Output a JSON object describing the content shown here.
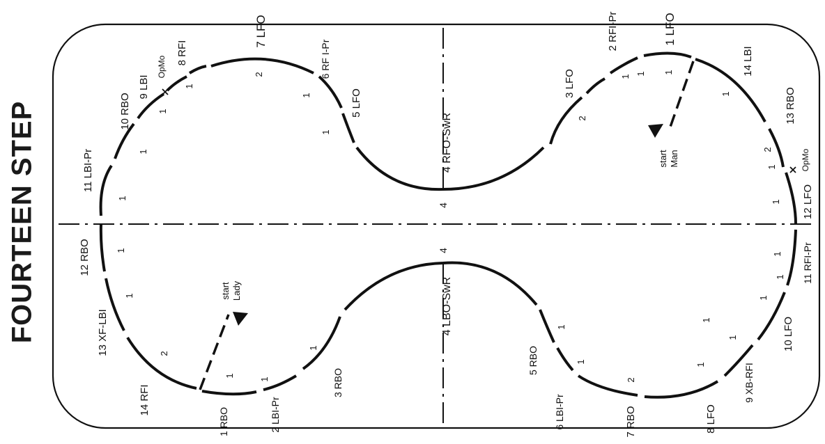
{
  "title": "FOURTEEN STEP",
  "starts": {
    "man": [
      "start",
      "Man"
    ],
    "lady": [
      "start",
      "Lady"
    ]
  },
  "center_labels": {
    "top_edge": "4 RFO-SwR",
    "bottom_edge": "4 LBO-SwR",
    "top_beat": "4",
    "bottom_beat": "4"
  },
  "steps": [
    {
      "id": "tl-1",
      "label": "7 LFO"
    },
    {
      "id": "tl-2",
      "label": "8 RFI"
    },
    {
      "id": "tl-3",
      "label": "OpMo"
    },
    {
      "id": "tl-4",
      "label": "9 LBI"
    },
    {
      "id": "tl-5",
      "label": "10 RBO"
    },
    {
      "id": "tl-6",
      "label": "11 LBI-Pr"
    },
    {
      "id": "tl-7",
      "label": "6 RF I-Pr"
    },
    {
      "id": "tl-8",
      "label": "5 LFO"
    },
    {
      "id": "bl-1",
      "label": "12 RBO"
    },
    {
      "id": "bl-2",
      "label": "13 XF-LBI"
    },
    {
      "id": "bl-3",
      "label": "14 RFI"
    },
    {
      "id": "bl-4",
      "label": "1 RBO"
    },
    {
      "id": "bl-5",
      "label": "2 LBI-Pr"
    },
    {
      "id": "bl-6",
      "label": "3 RBO"
    },
    {
      "id": "tr-1",
      "label": "2 RFI-Pr"
    },
    {
      "id": "tr-2",
      "label": "1 LFO"
    },
    {
      "id": "tr-3",
      "label": "3 LFO"
    },
    {
      "id": "tr-4",
      "label": "14 LBI"
    },
    {
      "id": "tr-5",
      "label": "13 RBO"
    },
    {
      "id": "tr-6",
      "label": "OpMo"
    },
    {
      "id": "tr-7",
      "label": "12 LFO"
    },
    {
      "id": "br-1",
      "label": "11 RFI-Pr"
    },
    {
      "id": "br-2",
      "label": "10 LFO"
    },
    {
      "id": "br-3",
      "label": "9 XB-RFI"
    },
    {
      "id": "br-4",
      "label": "8 LFO"
    },
    {
      "id": "br-5",
      "label": "7 RBO"
    },
    {
      "id": "br-6",
      "label": "6 LBI-Pr"
    },
    {
      "id": "br-7",
      "label": "5 RBO"
    }
  ],
  "beats": [
    {
      "id": "b1",
      "label": "2"
    },
    {
      "id": "b2",
      "label": "1"
    },
    {
      "id": "b3",
      "label": "1"
    },
    {
      "id": "b4",
      "label": "1"
    },
    {
      "id": "b5",
      "label": "1"
    },
    {
      "id": "b6",
      "label": "1"
    },
    {
      "id": "b7",
      "label": "1"
    },
    {
      "id": "b8",
      "label": "1"
    },
    {
      "id": "b9",
      "label": "1"
    },
    {
      "id": "b10",
      "label": "1"
    },
    {
      "id": "b11",
      "label": "1"
    },
    {
      "id": "b12",
      "label": "2"
    },
    {
      "id": "b13",
      "label": "1"
    },
    {
      "id": "b14",
      "label": "1"
    },
    {
      "id": "b15",
      "label": "2"
    },
    {
      "id": "b16",
      "label": "1"
    },
    {
      "id": "b17",
      "label": "1"
    },
    {
      "id": "b18",
      "label": "1"
    },
    {
      "id": "b19",
      "label": "2"
    },
    {
      "id": "b20",
      "label": "1"
    },
    {
      "id": "b21",
      "label": "1"
    },
    {
      "id": "b22",
      "label": "1"
    },
    {
      "id": "b23",
      "label": "1"
    },
    {
      "id": "b24",
      "label": "1"
    },
    {
      "id": "b25",
      "label": "2"
    },
    {
      "id": "b26",
      "label": "1"
    },
    {
      "id": "b27",
      "label": "1"
    },
    {
      "id": "b28",
      "label": "1"
    },
    {
      "id": "b29",
      "label": "1"
    },
    {
      "id": "b30",
      "label": "1"
    }
  ]
}
